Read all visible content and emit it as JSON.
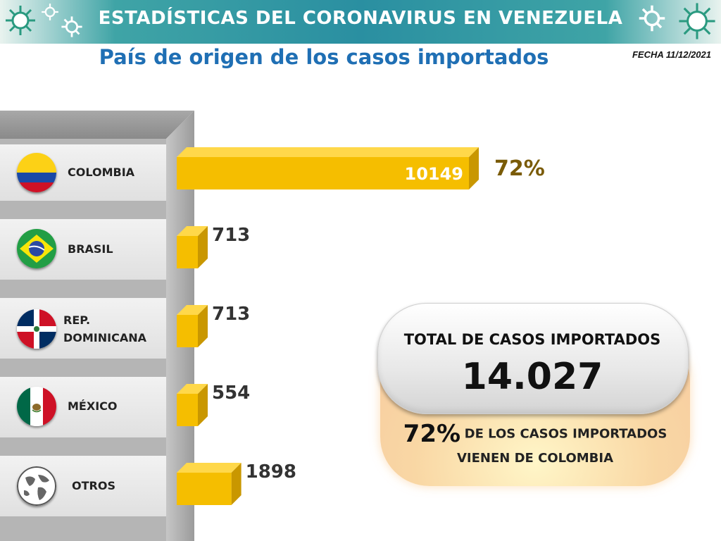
{
  "header": {
    "title": "ESTADÍSTICAS DEL CORONAVIRUS EN VENEZUELA",
    "subtitle": "País de origen de los casos importados",
    "date": "FECHA 11/12/2021"
  },
  "chart_data": {
    "type": "bar",
    "orientation": "horizontal",
    "categories": [
      "COLOMBIA",
      "BRASIL",
      "REP. DOMINICANA",
      "MÉXICO",
      "OTROS"
    ],
    "values": [
      10149,
      713,
      713,
      554,
      1898
    ],
    "value_labels": [
      "10149",
      "713",
      "713",
      "554",
      "1898"
    ],
    "highlight": {
      "category": "COLOMBIA",
      "percent_label": "72%"
    },
    "bar_color": "#f5be00",
    "bar_side_color": "#c99700"
  },
  "rows": [
    {
      "name_line1": "COLOMBIA",
      "name_line2": "",
      "flag": "colombia-flag-icon"
    },
    {
      "name_line1": "BRASIL",
      "name_line2": "",
      "flag": "brazil-flag-icon"
    },
    {
      "name_line1": "REP.",
      "name_line2": "DOMINICANA",
      "flag": "dominican-republic-flag-icon"
    },
    {
      "name_line1": "MÉXICO",
      "name_line2": "",
      "flag": "mexico-flag-icon"
    },
    {
      "name_line1": "OTROS",
      "name_line2": "",
      "flag": "globe-icon"
    }
  ],
  "total": {
    "title": "TOTAL DE CASOS IMPORTADOS",
    "number": "14.027",
    "note_pct": "72%",
    "note_line1": "DE LOS CASOS IMPORTADOS",
    "note_line2": "VIENEN DE COLOMBIA"
  },
  "colors": {
    "header_teal": "#2a8fa1",
    "subtitle_blue": "#1f6fb4",
    "percent_brown": "#7a5b07"
  }
}
